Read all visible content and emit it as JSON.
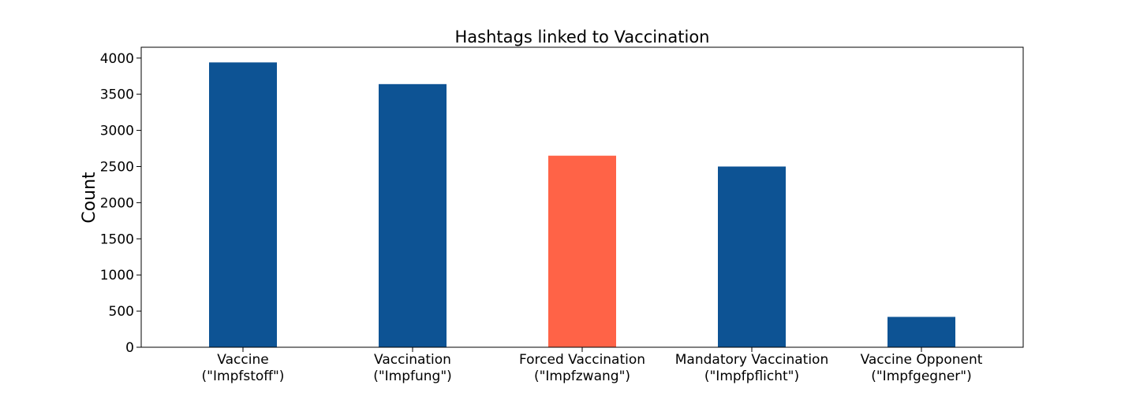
{
  "chart_data": {
    "type": "bar",
    "title": "Hashtags linked to Vaccination",
    "xlabel": "",
    "ylabel": "Count",
    "ylim": [
      0,
      4150
    ],
    "yticks": [
      0,
      500,
      1000,
      1500,
      2000,
      2500,
      3000,
      3500,
      4000
    ],
    "grid": false,
    "categories": [
      [
        "Vaccine",
        "(\"Impfstoff\")"
      ],
      [
        "Vaccination",
        "(\"Impfung\")"
      ],
      [
        "Forced Vaccination",
        "(\"Impfzwang\")"
      ],
      [
        "Mandatory Vaccination",
        "(\"Impfpflicht\")"
      ],
      [
        "Vaccine Opponent",
        "(\"Impfgegner\")"
      ]
    ],
    "values": [
      3940,
      3640,
      2650,
      2500,
      420
    ],
    "bar_colors": [
      "#0d5394",
      "#0d5394",
      "#ff6347",
      "#0d5394",
      "#0d5394"
    ]
  }
}
